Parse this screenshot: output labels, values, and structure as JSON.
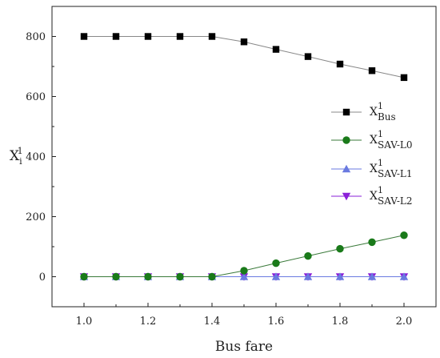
{
  "chart_data": {
    "type": "line",
    "title": "",
    "xlabel": "Bus fare",
    "ylabel": {
      "base": "X",
      "sup": "1",
      "sub": "i"
    },
    "xlim": [
      0.9,
      2.1
    ],
    "ylim": [
      -100,
      900
    ],
    "xticks": [
      "1.0",
      "1.2",
      "1.4",
      "1.6",
      "1.8",
      "2.0"
    ],
    "yticks": [
      "0",
      "200",
      "400",
      "600",
      "800"
    ],
    "grid": false,
    "legend_position": "right",
    "x": [
      1.0,
      1.1,
      1.2,
      1.3,
      1.4,
      1.5,
      1.6,
      1.7,
      1.8,
      1.9,
      2.0
    ],
    "series": [
      {
        "name": {
          "base": "X",
          "sup": "1",
          "sub": "Bus"
        },
        "marker": "square",
        "color": "#000000",
        "line_color": "#888888",
        "values": [
          800,
          800,
          800,
          800,
          800,
          782,
          757,
          733,
          708,
          686,
          663
        ]
      },
      {
        "name": {
          "base": "X",
          "sup": "1",
          "sub": "SAV-L0"
        },
        "marker": "circle",
        "color": "#1a7a1a",
        "line_color": "#3a7a3a",
        "values": [
          0,
          0,
          0,
          0,
          0,
          20,
          45,
          69,
          93,
          115,
          138
        ]
      },
      {
        "name": {
          "base": "X",
          "sup": "1",
          "sub": "SAV-L1"
        },
        "marker": "triangle-up",
        "color": "#6a7ae0",
        "line_color": "#6a7ae0",
        "values": [
          0,
          0,
          0,
          0,
          0,
          0,
          0,
          0,
          0,
          0,
          0
        ]
      },
      {
        "name": {
          "base": "X",
          "sup": "1",
          "sub": "SAV-L2"
        },
        "marker": "triangle-down",
        "color": "#8a20d8",
        "line_color": "#8a20d8",
        "values": [
          0,
          0,
          0,
          0,
          0,
          0,
          0,
          0,
          0,
          0,
          0
        ]
      }
    ]
  }
}
